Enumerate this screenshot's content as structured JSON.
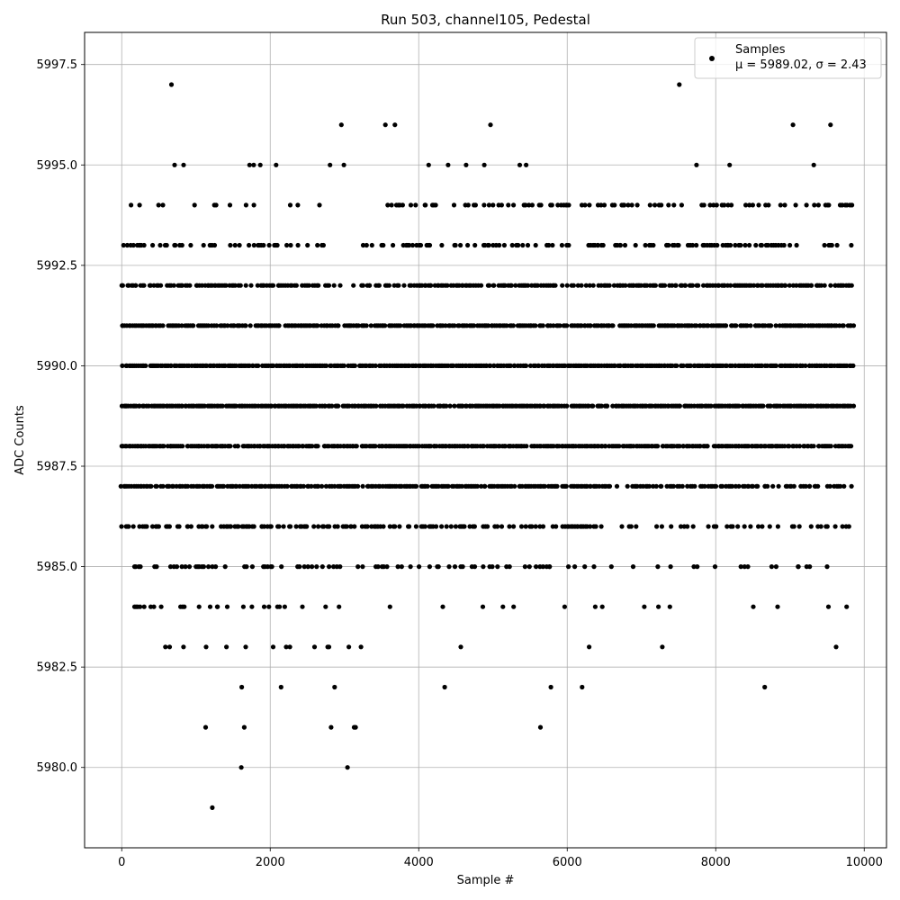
{
  "chart_data": {
    "type": "scatter",
    "title": "Run 503, channel105, Pedestal",
    "xlabel": "Sample #",
    "ylabel": "ADC Counts",
    "xlim": [
      -500,
      10300
    ],
    "ylim": [
      5978.0,
      5998.3
    ],
    "xticks": [
      0,
      2000,
      4000,
      6000,
      8000,
      10000
    ],
    "xtick_labels": [
      "0",
      "2000",
      "4000",
      "6000",
      "8000",
      "10000"
    ],
    "yticks": [
      5980.0,
      5982.5,
      5985.0,
      5987.5,
      5990.0,
      5992.5,
      5995.0,
      5997.5
    ],
    "ytick_labels": [
      "5980.0",
      "5982.5",
      "5985.0",
      "5987.5",
      "5990.0",
      "5992.5",
      "5995.0",
      "5997.5"
    ],
    "grid": true,
    "legend_position": "top-right",
    "series": [
      {
        "name": "Samples",
        "color": "#000000",
        "marker": "dot",
        "x_range": [
          0,
          9850
        ],
        "levels": [
          {
            "y": 5990,
            "coverage": [
              [
                0,
                9850,
                0.95
              ]
            ]
          },
          {
            "y": 5989,
            "coverage": [
              [
                0,
                9850,
                0.95
              ]
            ]
          },
          {
            "y": 5988,
            "coverage": [
              [
                0,
                9850,
                0.93
              ]
            ]
          },
          {
            "y": 5991,
            "coverage": [
              [
                0,
                9850,
                0.9
              ]
            ]
          },
          {
            "y": 5987,
            "coverage": [
              [
                0,
                6500,
                0.85
              ],
              [
                6500,
                9850,
                0.55
              ]
            ]
          },
          {
            "y": 5992,
            "coverage": [
              [
                0,
                2850,
                0.65
              ],
              [
                2850,
                3200,
                0.05
              ],
              [
                3200,
                9850,
                0.75
              ]
            ]
          },
          {
            "y": 5986,
            "coverage": [
              [
                0,
                6400,
                0.55
              ],
              [
                6400,
                9850,
                0.3
              ]
            ]
          },
          {
            "y": 5993,
            "coverage": [
              [
                0,
                2850,
                0.3
              ],
              [
                2850,
                3250,
                0.03
              ],
              [
                3250,
                9850,
                0.45
              ]
            ]
          },
          {
            "y": 5985,
            "coverage": [
              [
                0,
                6500,
                0.3
              ],
              [
                6500,
                9850,
                0.12
              ]
            ]
          },
          {
            "y": 5994,
            "coverage": [
              [
                0,
                2850,
                0.12
              ],
              [
                2850,
                3550,
                0.0
              ],
              [
                3550,
                9850,
                0.35
              ]
            ]
          },
          {
            "y": 5984,
            "coverage": [
              [
                0,
                3500,
                0.2
              ],
              [
                3500,
                9850,
                0.06
              ]
            ]
          },
          {
            "y": 5983,
            "coverage": [
              [
                250,
                3500,
                0.1
              ],
              [
                3500,
                9850,
                0.03
              ]
            ]
          },
          {
            "y": 5995,
            "coverage": [
              [
                400,
                9850,
                0.05
              ]
            ]
          },
          {
            "y": 5996,
            "coverage": [
              [
                2100,
                9850,
                0.03
              ]
            ]
          },
          {
            "y": 5982,
            "coverage": [
              [
                750,
                3200,
                0.04
              ]
            ]
          }
        ],
        "points": [
          {
            "x": 670,
            "y": 5997
          },
          {
            "x": 7510,
            "y": 5997
          },
          {
            "x": 4350,
            "y": 5982
          },
          {
            "x": 5780,
            "y": 5982
          },
          {
            "x": 6200,
            "y": 5982
          },
          {
            "x": 8660,
            "y": 5982
          },
          {
            "x": 1130,
            "y": 5981
          },
          {
            "x": 1650,
            "y": 5981
          },
          {
            "x": 2820,
            "y": 5981
          },
          {
            "x": 3130,
            "y": 5981
          },
          {
            "x": 3150,
            "y": 5981
          },
          {
            "x": 5640,
            "y": 5981
          },
          {
            "x": 1610,
            "y": 5980
          },
          {
            "x": 3040,
            "y": 5980
          },
          {
            "x": 1220,
            "y": 5979
          }
        ]
      }
    ],
    "stats": {
      "mu": 5989.02,
      "sigma": 2.43
    },
    "legend": {
      "label": "Samples",
      "stats_text": "μ = 5989.02, σ = 2.43"
    }
  }
}
